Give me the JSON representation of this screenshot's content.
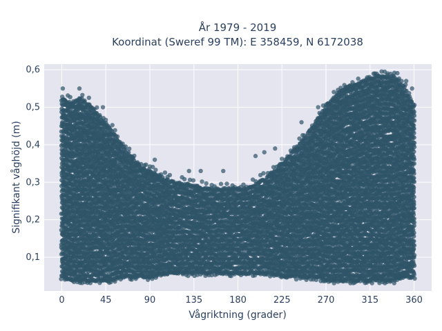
{
  "chart_data": {
    "type": "scatter",
    "title_line1": "År 1979 - 2019",
    "title_line2": "Koordinat (Sweref 99 TM): E 358459, N 6172038",
    "xlabel": "Vågriktning (grader)",
    "ylabel": "Signifikant våghöjd (m)",
    "xlim": [
      -18,
      378
    ],
    "ylim": [
      0.01,
      0.615
    ],
    "x_ticks": [
      0,
      45,
      90,
      135,
      180,
      225,
      270,
      315,
      360
    ],
    "x_tick_labels": [
      "0",
      "45",
      "90",
      "135",
      "180",
      "225",
      "270",
      "315",
      "360"
    ],
    "y_ticks": [
      0.1,
      0.2,
      0.3,
      0.4,
      0.5,
      0.6
    ],
    "y_tick_labels": [
      "0,1",
      "0,2",
      "0,3",
      "0,4",
      "0,5",
      "0,6"
    ],
    "grid": true,
    "legend": "none",
    "marker_color": "#2f5468",
    "background_color": "#e5e5f0",
    "envelope": {
      "x": [
        0,
        10,
        20,
        30,
        40,
        50,
        60,
        70,
        80,
        90,
        110,
        130,
        150,
        170,
        190,
        210,
        230,
        250,
        260,
        270,
        280,
        290,
        300,
        310,
        320,
        330,
        340,
        350,
        360
      ],
      "y_max": [
        0.52,
        0.51,
        0.52,
        0.5,
        0.47,
        0.44,
        0.4,
        0.37,
        0.34,
        0.33,
        0.3,
        0.29,
        0.28,
        0.28,
        0.28,
        0.31,
        0.36,
        0.42,
        0.46,
        0.5,
        0.53,
        0.55,
        0.56,
        0.57,
        0.58,
        0.58,
        0.58,
        0.55,
        0.5
      ],
      "y_min": [
        0.05,
        0.04,
        0.04,
        0.04,
        0.04,
        0.04,
        0.05,
        0.05,
        0.05,
        0.05,
        0.06,
        0.06,
        0.06,
        0.06,
        0.06,
        0.06,
        0.05,
        0.05,
        0.05,
        0.04,
        0.04,
        0.04,
        0.04,
        0.04,
        0.04,
        0.04,
        0.04,
        0.05,
        0.05
      ]
    },
    "outliers": [
      {
        "x": 1,
        "y": 0.55
      },
      {
        "x": 18,
        "y": 0.55
      },
      {
        "x": 42,
        "y": 0.5
      },
      {
        "x": 95,
        "y": 0.36
      },
      {
        "x": 130,
        "y": 0.33
      },
      {
        "x": 142,
        "y": 0.33
      },
      {
        "x": 165,
        "y": 0.33
      },
      {
        "x": 198,
        "y": 0.37
      },
      {
        "x": 207,
        "y": 0.38
      },
      {
        "x": 218,
        "y": 0.39
      },
      {
        "x": 245,
        "y": 0.46
      },
      {
        "x": 262,
        "y": 0.5
      },
      {
        "x": 320,
        "y": 0.59
      },
      {
        "x": 333,
        "y": 0.59
      },
      {
        "x": 352,
        "y": 0.57
      },
      {
        "x": 358,
        "y": 0.55
      },
      {
        "x": 88,
        "y": 0.04
      },
      {
        "x": 250,
        "y": 0.04
      }
    ]
  }
}
